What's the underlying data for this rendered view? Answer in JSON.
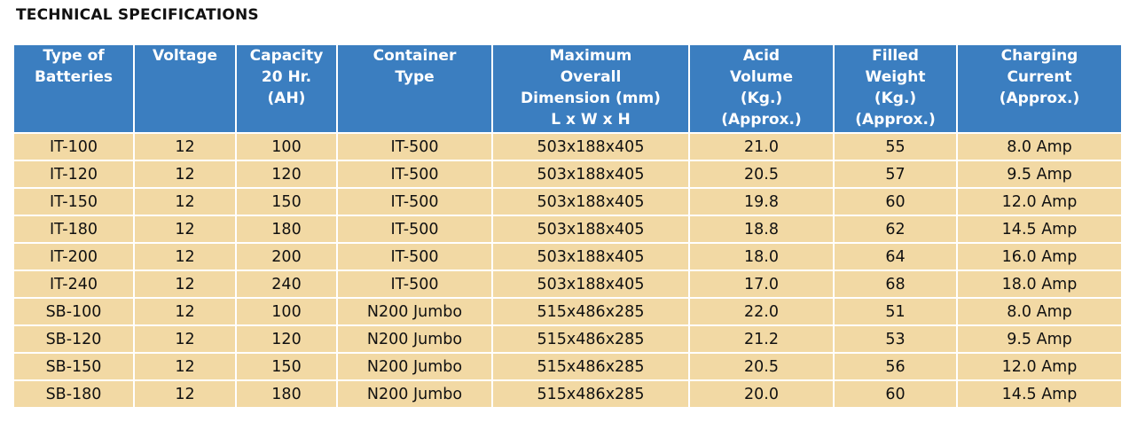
{
  "title": "TECHNICAL SPECIFICATIONS",
  "headers": [
    [
      "Type of",
      "Batteries"
    ],
    [
      "Voltage"
    ],
    [
      "Capacity",
      "20 Hr.",
      "(AH)"
    ],
    [
      "Container",
      "Type"
    ],
    [
      "Maximum",
      "Overall",
      "Dimension (mm)",
      "L x W x H"
    ],
    [
      "Acid",
      "Volume",
      "(Kg.)",
      "(Approx.)"
    ],
    [
      "Filled",
      "Weight",
      "(Kg.)",
      "(Approx.)"
    ],
    [
      "Charging",
      "Current",
      "(Approx.)"
    ]
  ],
  "rows": [
    [
      "IT-100",
      "12",
      "100",
      "IT-500",
      "503x188x405",
      "21.0",
      "55",
      "8.0 Amp"
    ],
    [
      "IT-120",
      "12",
      "120",
      "IT-500",
      "503x188x405",
      "20.5",
      "57",
      "9.5 Amp"
    ],
    [
      "IT-150",
      "12",
      "150",
      "IT-500",
      "503x188x405",
      "19.8",
      "60",
      "12.0 Amp"
    ],
    [
      "IT-180",
      "12",
      "180",
      "IT-500",
      "503x188x405",
      "18.8",
      "62",
      "14.5 Amp"
    ],
    [
      "IT-200",
      "12",
      "200",
      "IT-500",
      "503x188x405",
      "18.0",
      "64",
      "16.0 Amp"
    ],
    [
      "IT-240",
      "12",
      "240",
      "IT-500",
      "503x188x405",
      "17.0",
      "68",
      "18.0 Amp"
    ],
    [
      "SB-100",
      "12",
      "100",
      "N200 Jumbo",
      "515x486x285",
      "22.0",
      "51",
      "8.0 Amp"
    ],
    [
      "SB-120",
      "12",
      "120",
      "N200 Jumbo",
      "515x486x285",
      "21.2",
      "53",
      "9.5 Amp"
    ],
    [
      "SB-150",
      "12",
      "150",
      "N200 Jumbo",
      "515x486x285",
      "20.5",
      "56",
      "12.0 Amp"
    ],
    [
      "SB-180",
      "12",
      "180",
      "N200 Jumbo",
      "515x486x285",
      "20.0",
      "60",
      "14.5 Amp"
    ]
  ],
  "colors": {
    "header_bg": "#3b7ec0",
    "header_text": "#ffffff",
    "row_bg": "#f2d9a4"
  }
}
